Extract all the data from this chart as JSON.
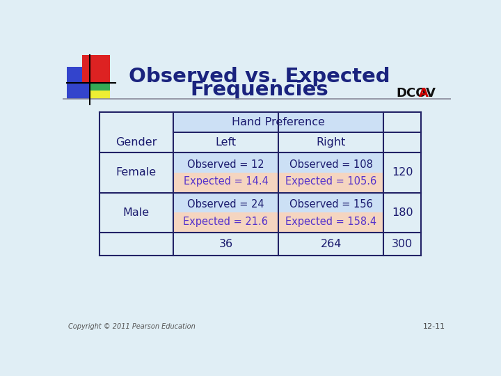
{
  "title_line1": "Observed vs. Expected",
  "title_line2": "Frequencies",
  "title_color": "#1a237e",
  "dcov_text": "DCOV",
  "dcov_a": "A",
  "dcov_color": "#111111",
  "dcov_a_color": "#cc0000",
  "background_color": "#e0eef5",
  "cell_observed_bg": "#cce0f5",
  "cell_expected_bg": "#f5d5c0",
  "header_span_bg": "#cce0f5",
  "copyright": "Copyright © 2011 Pearson Education",
  "slide_number": "12-11",
  "header1_label": "Hand Preference",
  "header2_label": "Gender",
  "header2_left": "Left",
  "header2_right": "Right",
  "female_label": "Female",
  "female_left_obs": "Observed = 12",
  "female_left_exp": "Expected = 14.4",
  "female_right_obs": "Observed = 108",
  "female_right_exp": "Expected = 105.6",
  "female_total": "120",
  "male_label": "Male",
  "male_left_obs": "Observed = 24",
  "male_left_exp": "Expected = 21.6",
  "male_right_obs": "Observed = 156",
  "male_right_exp": "Expected = 158.4",
  "male_total": "180",
  "total_left": "36",
  "total_right": "264",
  "total_total": "300",
  "text_dark": "#1a1a6e",
  "text_expected_color": "#5533cc",
  "line_color": "#222266",
  "logo_red": "#dd2222",
  "logo_blue": "#3344cc",
  "logo_green": "#33aa55",
  "logo_yellow": "#eeee33"
}
